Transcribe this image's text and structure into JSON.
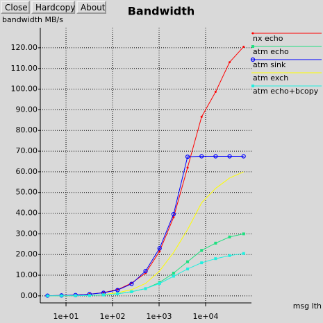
{
  "buttons": [
    "Close",
    "Hardcopy",
    "About"
  ],
  "chart_data": {
    "type": "line",
    "title": "Bandwidth",
    "y_label": "bandwidth MB/s",
    "x_label": "msg lth",
    "x_log": true,
    "grid": true,
    "legend": "right",
    "x": [
      4,
      8,
      16,
      32,
      64,
      128,
      256,
      512,
      1024,
      2048,
      4096,
      8192,
      16384,
      32768,
      65536
    ],
    "xlim": [
      2.8,
      96600
    ],
    "xticks": [
      {
        "value": 10,
        "label": "1e+01"
      },
      {
        "value": 100,
        "label": "1e+02"
      },
      {
        "value": 1000,
        "label": "1e+03"
      },
      {
        "value": 10000,
        "label": "1e+04"
      }
    ],
    "ylim": [
      -3.4,
      129.7
    ],
    "yticks": [
      {
        "value": 0,
        "label": "0.00"
      },
      {
        "value": 10,
        "label": "10.00"
      },
      {
        "value": 20,
        "label": "20.00"
      },
      {
        "value": 30,
        "label": "30.00"
      },
      {
        "value": 40,
        "label": "40.00"
      },
      {
        "value": 50,
        "label": "50.00"
      },
      {
        "value": 60,
        "label": "60.00"
      },
      {
        "value": 70,
        "label": "70.00"
      },
      {
        "value": 80,
        "label": "80.00"
      },
      {
        "value": 90,
        "label": "90.00"
      },
      {
        "value": 100,
        "label": "100.00"
      },
      {
        "value": 110,
        "label": "110.00"
      },
      {
        "value": 120,
        "label": "120.00"
      }
    ],
    "series": [
      {
        "name": "nx echo",
        "color": "#ff0000",
        "marker": "dot",
        "values": [
          0.1,
          0.2,
          0.4,
          0.8,
          1.6,
          3,
          6.2,
          11,
          21.5,
          38,
          62,
          86.6,
          98.7,
          113,
          120.5
        ]
      },
      {
        "name": "atm echo",
        "color": "#20e080",
        "marker": "square",
        "values": [
          0,
          0.05,
          0.1,
          0.2,
          0.5,
          1,
          2,
          3.5,
          6.5,
          11,
          16.5,
          22,
          25.5,
          28.5,
          30
        ]
      },
      {
        "name": "atm sink",
        "color": "#0000ff",
        "marker": "circle",
        "values": [
          0.1,
          0.2,
          0.4,
          0.8,
          1.5,
          2.8,
          5.8,
          12,
          23,
          39.5,
          67.3,
          67.5,
          67.5,
          67.5,
          67.5
        ]
      },
      {
        "name": "atm exch",
        "color": "#ffff00",
        "marker": "none",
        "values": [
          0,
          0.05,
          0.1,
          0.2,
          0.6,
          1.5,
          3,
          6,
          12,
          21,
          32,
          45,
          52,
          57,
          60
        ]
      },
      {
        "name": "atm echo+bcopy",
        "color": "#20f0e0",
        "marker": "square",
        "values": [
          0,
          0.05,
          0.1,
          0.2,
          0.5,
          1,
          2,
          3.5,
          6,
          9.5,
          13,
          16,
          18,
          19.5,
          20.5
        ]
      }
    ]
  }
}
